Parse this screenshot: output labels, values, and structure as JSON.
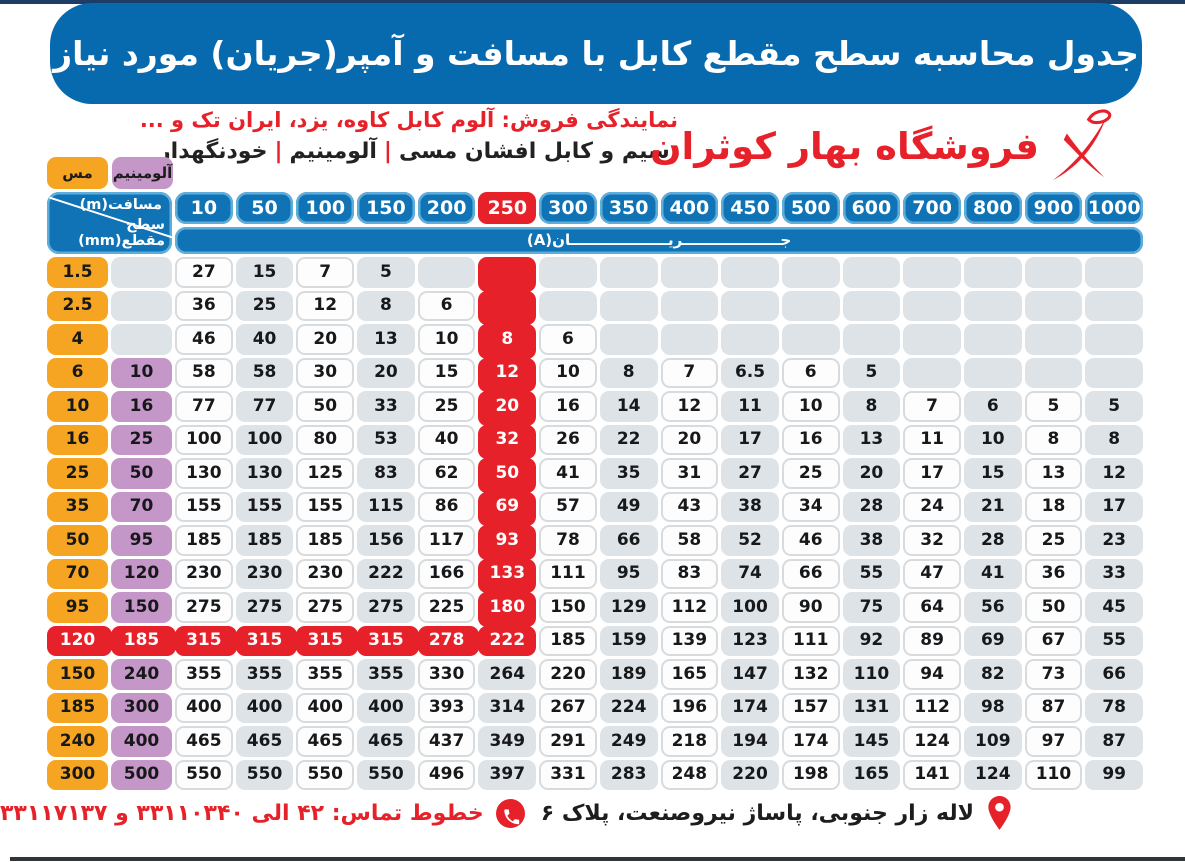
{
  "header": {
    "title": "جدول محاسبه سطح مقطع کابل با مسافت و آمپر(جریان) مورد نیاز",
    "dealer_line": "نمایندگی فروش: آلوم کابل کاوه، یزد، ایران تک و ...",
    "product_parts": [
      "سیم و کابل افشان مسی",
      "آلومینیم",
      "خودنگهدار"
    ],
    "store_name": "فروشگاه بهار کوثران"
  },
  "legend": {
    "copper": "مس",
    "aluminum": "آلومینیم"
  },
  "table": {
    "corner_top": "مسافت(m)",
    "corner_bottom": "سطح مقطع(mm)",
    "current_label": "جریان(A)",
    "current_label_display": "جـــــــــــــــــــریـــــــــــــــــــان(A)",
    "columns": [
      "10",
      "50",
      "100",
      "150",
      "200",
      "250",
      "300",
      "350",
      "400",
      "450",
      "500",
      "600",
      "700",
      "800",
      "900",
      "1000"
    ],
    "highlight": {
      "col_index": 5,
      "row_index": 11,
      "column_value": "250",
      "row_copper_value": "120"
    },
    "rows": [
      {
        "cu": "1.5",
        "al": "",
        "v": [
          "27",
          "15",
          "7",
          "5",
          "",
          "",
          "",
          "",
          "",
          "",
          "",
          "",
          "",
          "",
          "",
          ""
        ]
      },
      {
        "cu": "2.5",
        "al": "",
        "v": [
          "36",
          "25",
          "12",
          "8",
          "6",
          "",
          "",
          "",
          "",
          "",
          "",
          "",
          "",
          "",
          "",
          ""
        ]
      },
      {
        "cu": "4",
        "al": "",
        "v": [
          "46",
          "40",
          "20",
          "13",
          "10",
          "8",
          "6",
          "",
          "",
          "",
          "",
          "",
          "",
          "",
          "",
          ""
        ]
      },
      {
        "cu": "6",
        "al": "10",
        "v": [
          "58",
          "58",
          "30",
          "20",
          "15",
          "12",
          "10",
          "8",
          "7",
          "6.5",
          "6",
          "5",
          "",
          "",
          "",
          ""
        ]
      },
      {
        "cu": "10",
        "al": "16",
        "v": [
          "77",
          "77",
          "50",
          "33",
          "25",
          "20",
          "16",
          "14",
          "12",
          "11",
          "10",
          "8",
          "7",
          "6",
          "5",
          "5"
        ]
      },
      {
        "cu": "16",
        "al": "25",
        "v": [
          "100",
          "100",
          "80",
          "53",
          "40",
          "32",
          "26",
          "22",
          "20",
          "17",
          "16",
          "13",
          "11",
          "10",
          "8",
          "8"
        ]
      },
      {
        "cu": "25",
        "al": "50",
        "v": [
          "130",
          "130",
          "125",
          "83",
          "62",
          "50",
          "41",
          "35",
          "31",
          "27",
          "25",
          "20",
          "17",
          "15",
          "13",
          "12"
        ]
      },
      {
        "cu": "35",
        "al": "70",
        "v": [
          "155",
          "155",
          "155",
          "115",
          "86",
          "69",
          "57",
          "49",
          "43",
          "38",
          "34",
          "28",
          "24",
          "21",
          "18",
          "17"
        ]
      },
      {
        "cu": "50",
        "al": "95",
        "v": [
          "185",
          "185",
          "185",
          "156",
          "117",
          "93",
          "78",
          "66",
          "58",
          "52",
          "46",
          "38",
          "32",
          "28",
          "25",
          "23"
        ]
      },
      {
        "cu": "70",
        "al": "120",
        "v": [
          "230",
          "230",
          "230",
          "222",
          "166",
          "133",
          "111",
          "95",
          "83",
          "74",
          "66",
          "55",
          "47",
          "41",
          "36",
          "33"
        ]
      },
      {
        "cu": "95",
        "al": "150",
        "v": [
          "275",
          "275",
          "275",
          "275",
          "225",
          "180",
          "150",
          "129",
          "112",
          "100",
          "90",
          "75",
          "64",
          "56",
          "50",
          "45"
        ]
      },
      {
        "cu": "120",
        "al": "185",
        "v": [
          "315",
          "315",
          "315",
          "315",
          "278",
          "222",
          "185",
          "159",
          "139",
          "123",
          "111",
          "92",
          "89",
          "69",
          "67",
          "55"
        ]
      },
      {
        "cu": "150",
        "al": "240",
        "v": [
          "355",
          "355",
          "355",
          "355",
          "330",
          "264",
          "220",
          "189",
          "165",
          "147",
          "132",
          "110",
          "94",
          "82",
          "73",
          "66"
        ]
      },
      {
        "cu": "185",
        "al": "300",
        "v": [
          "400",
          "400",
          "400",
          "400",
          "393",
          "314",
          "267",
          "224",
          "196",
          "174",
          "157",
          "131",
          "112",
          "98",
          "87",
          "78"
        ]
      },
      {
        "cu": "240",
        "al": "400",
        "v": [
          "465",
          "465",
          "465",
          "465",
          "437",
          "349",
          "291",
          "249",
          "218",
          "194",
          "174",
          "145",
          "124",
          "109",
          "97",
          "87"
        ]
      },
      {
        "cu": "300",
        "al": "500",
        "v": [
          "550",
          "550",
          "550",
          "550",
          "496",
          "397",
          "331",
          "283",
          "248",
          "220",
          "198",
          "165",
          "141",
          "124",
          "110",
          "99"
        ]
      }
    ]
  },
  "footer": {
    "address": "لاله زار جنوبی، پاساژ نیروصنعت، پلاک ۶",
    "phone_line": "خطوط تماس: ۴۲ الی ۳۳۱۱۰۳۴۰ و ۳۳۱۱۷۱۳۷"
  },
  "colors": {
    "banner": "#0769ae",
    "cellblue": "#0f73b6",
    "cellblueborder": "#5fadda",
    "red": "#e62129",
    "orange": "#f6a522",
    "purple": "#c596c8",
    "grey": "#dde3e7",
    "navy": "#1b3d66",
    "bottomline": "#30353b"
  }
}
